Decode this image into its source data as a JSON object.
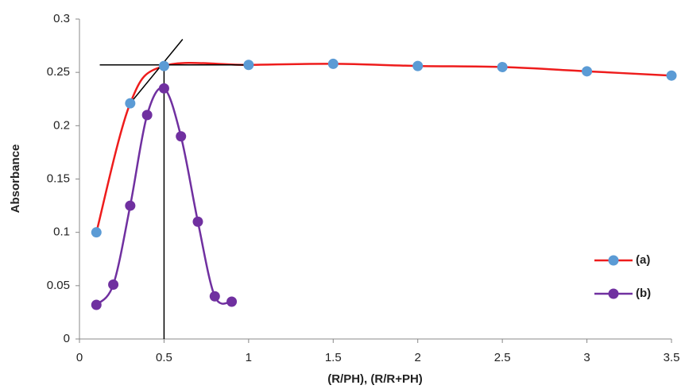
{
  "chart_data": {
    "type": "line",
    "x_label": "(R/PH), (R/R+PH)",
    "y_label": "Absorbance",
    "xlim": [
      0,
      3.5
    ],
    "xticks": [
      0,
      0.5,
      1,
      1.5,
      2,
      2.5,
      3,
      3.5
    ],
    "ylim": [
      0,
      0.3
    ],
    "yticks": [
      0,
      0.05,
      0.1,
      0.15,
      0.2,
      0.25,
      0.3
    ],
    "legend": "right",
    "series": [
      {
        "name": "(a)",
        "color": "#ee1c1c",
        "marker_color": "#5b9bd5",
        "x": [
          0.1,
          0.3,
          0.5,
          1,
          1.5,
          2,
          2.5,
          3,
          3.5
        ],
        "values": [
          0.1,
          0.221,
          0.256,
          0.257,
          0.258,
          0.256,
          0.255,
          0.251,
          0.247
        ]
      },
      {
        "name": "(b)",
        "color": "#7030a0",
        "marker_color": "#7030a0",
        "x": [
          0.1,
          0.2,
          0.3,
          0.4,
          0.5,
          0.6,
          0.7,
          0.8,
          0.9
        ],
        "values": [
          0.032,
          0.051,
          0.125,
          0.21,
          0.235,
          0.19,
          0.11,
          0.04,
          0.035
        ]
      }
    ],
    "guide_lines": [
      {
        "x": [
          0.12,
          1.0
        ],
        "values": [
          0.257,
          0.257
        ]
      },
      {
        "x": [
          0.3,
          0.61
        ],
        "values": [
          0.221,
          0.281
        ]
      },
      {
        "x": [
          0.5,
          0.5
        ],
        "values": [
          0,
          0.259
        ]
      }
    ]
  }
}
